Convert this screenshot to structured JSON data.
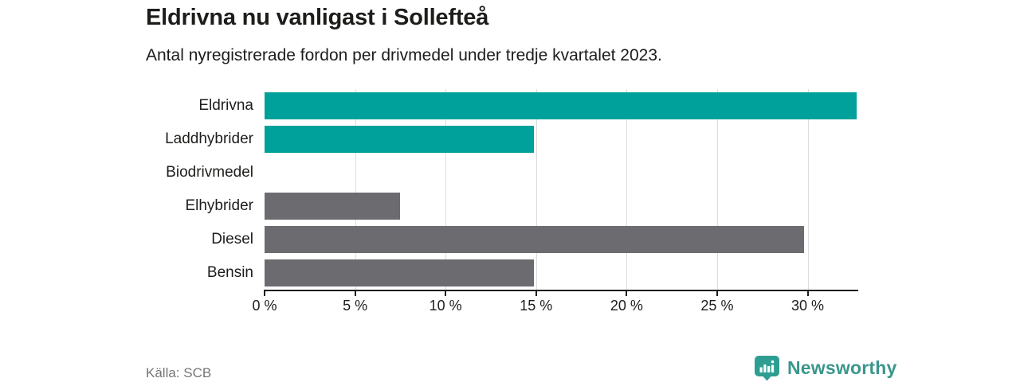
{
  "header": {
    "title": "Eldrivna nu vanligast i Sollefteå",
    "subtitle": "Antal nyregistrerade fordon per drivmedel under tredje kvartalet 2023."
  },
  "chart_data": {
    "type": "bar",
    "orientation": "horizontal",
    "title": "Eldrivna nu vanligast i Sollefteå",
    "subtitle": "Antal nyregistrerade fordon per drivmedel under tredje kvartalet 2023.",
    "categories": [
      "Eldrivna",
      "Laddhybrider",
      "Biodrivmedel",
      "Elhybrider",
      "Diesel",
      "Bensin"
    ],
    "values": [
      32.7,
      14.9,
      0,
      7.5,
      29.8,
      14.9
    ],
    "unit": "%",
    "bar_colors": [
      "#00a09b",
      "#00a09b",
      "#6c6b70",
      "#6c6b70",
      "#6c6b70",
      "#6c6b70"
    ],
    "highlight_color": "#00a09b",
    "default_color": "#6c6b70",
    "xlim": [
      0,
      32.75
    ],
    "x_ticks": [
      0,
      5,
      10,
      15,
      20,
      25,
      30
    ],
    "x_tick_labels": [
      "0 %",
      "5 %",
      "10 %",
      "15 %",
      "20 %",
      "25 %",
      "30 %"
    ],
    "grid": "vertical",
    "gridline_color": "#dcdcdc",
    "legend": "none"
  },
  "footer": {
    "source": "Källa: SCB",
    "brand": "Newsworthy",
    "brand_color": "#3a968b",
    "brand_icon": "newsworthy-pin-barchart-icon"
  }
}
